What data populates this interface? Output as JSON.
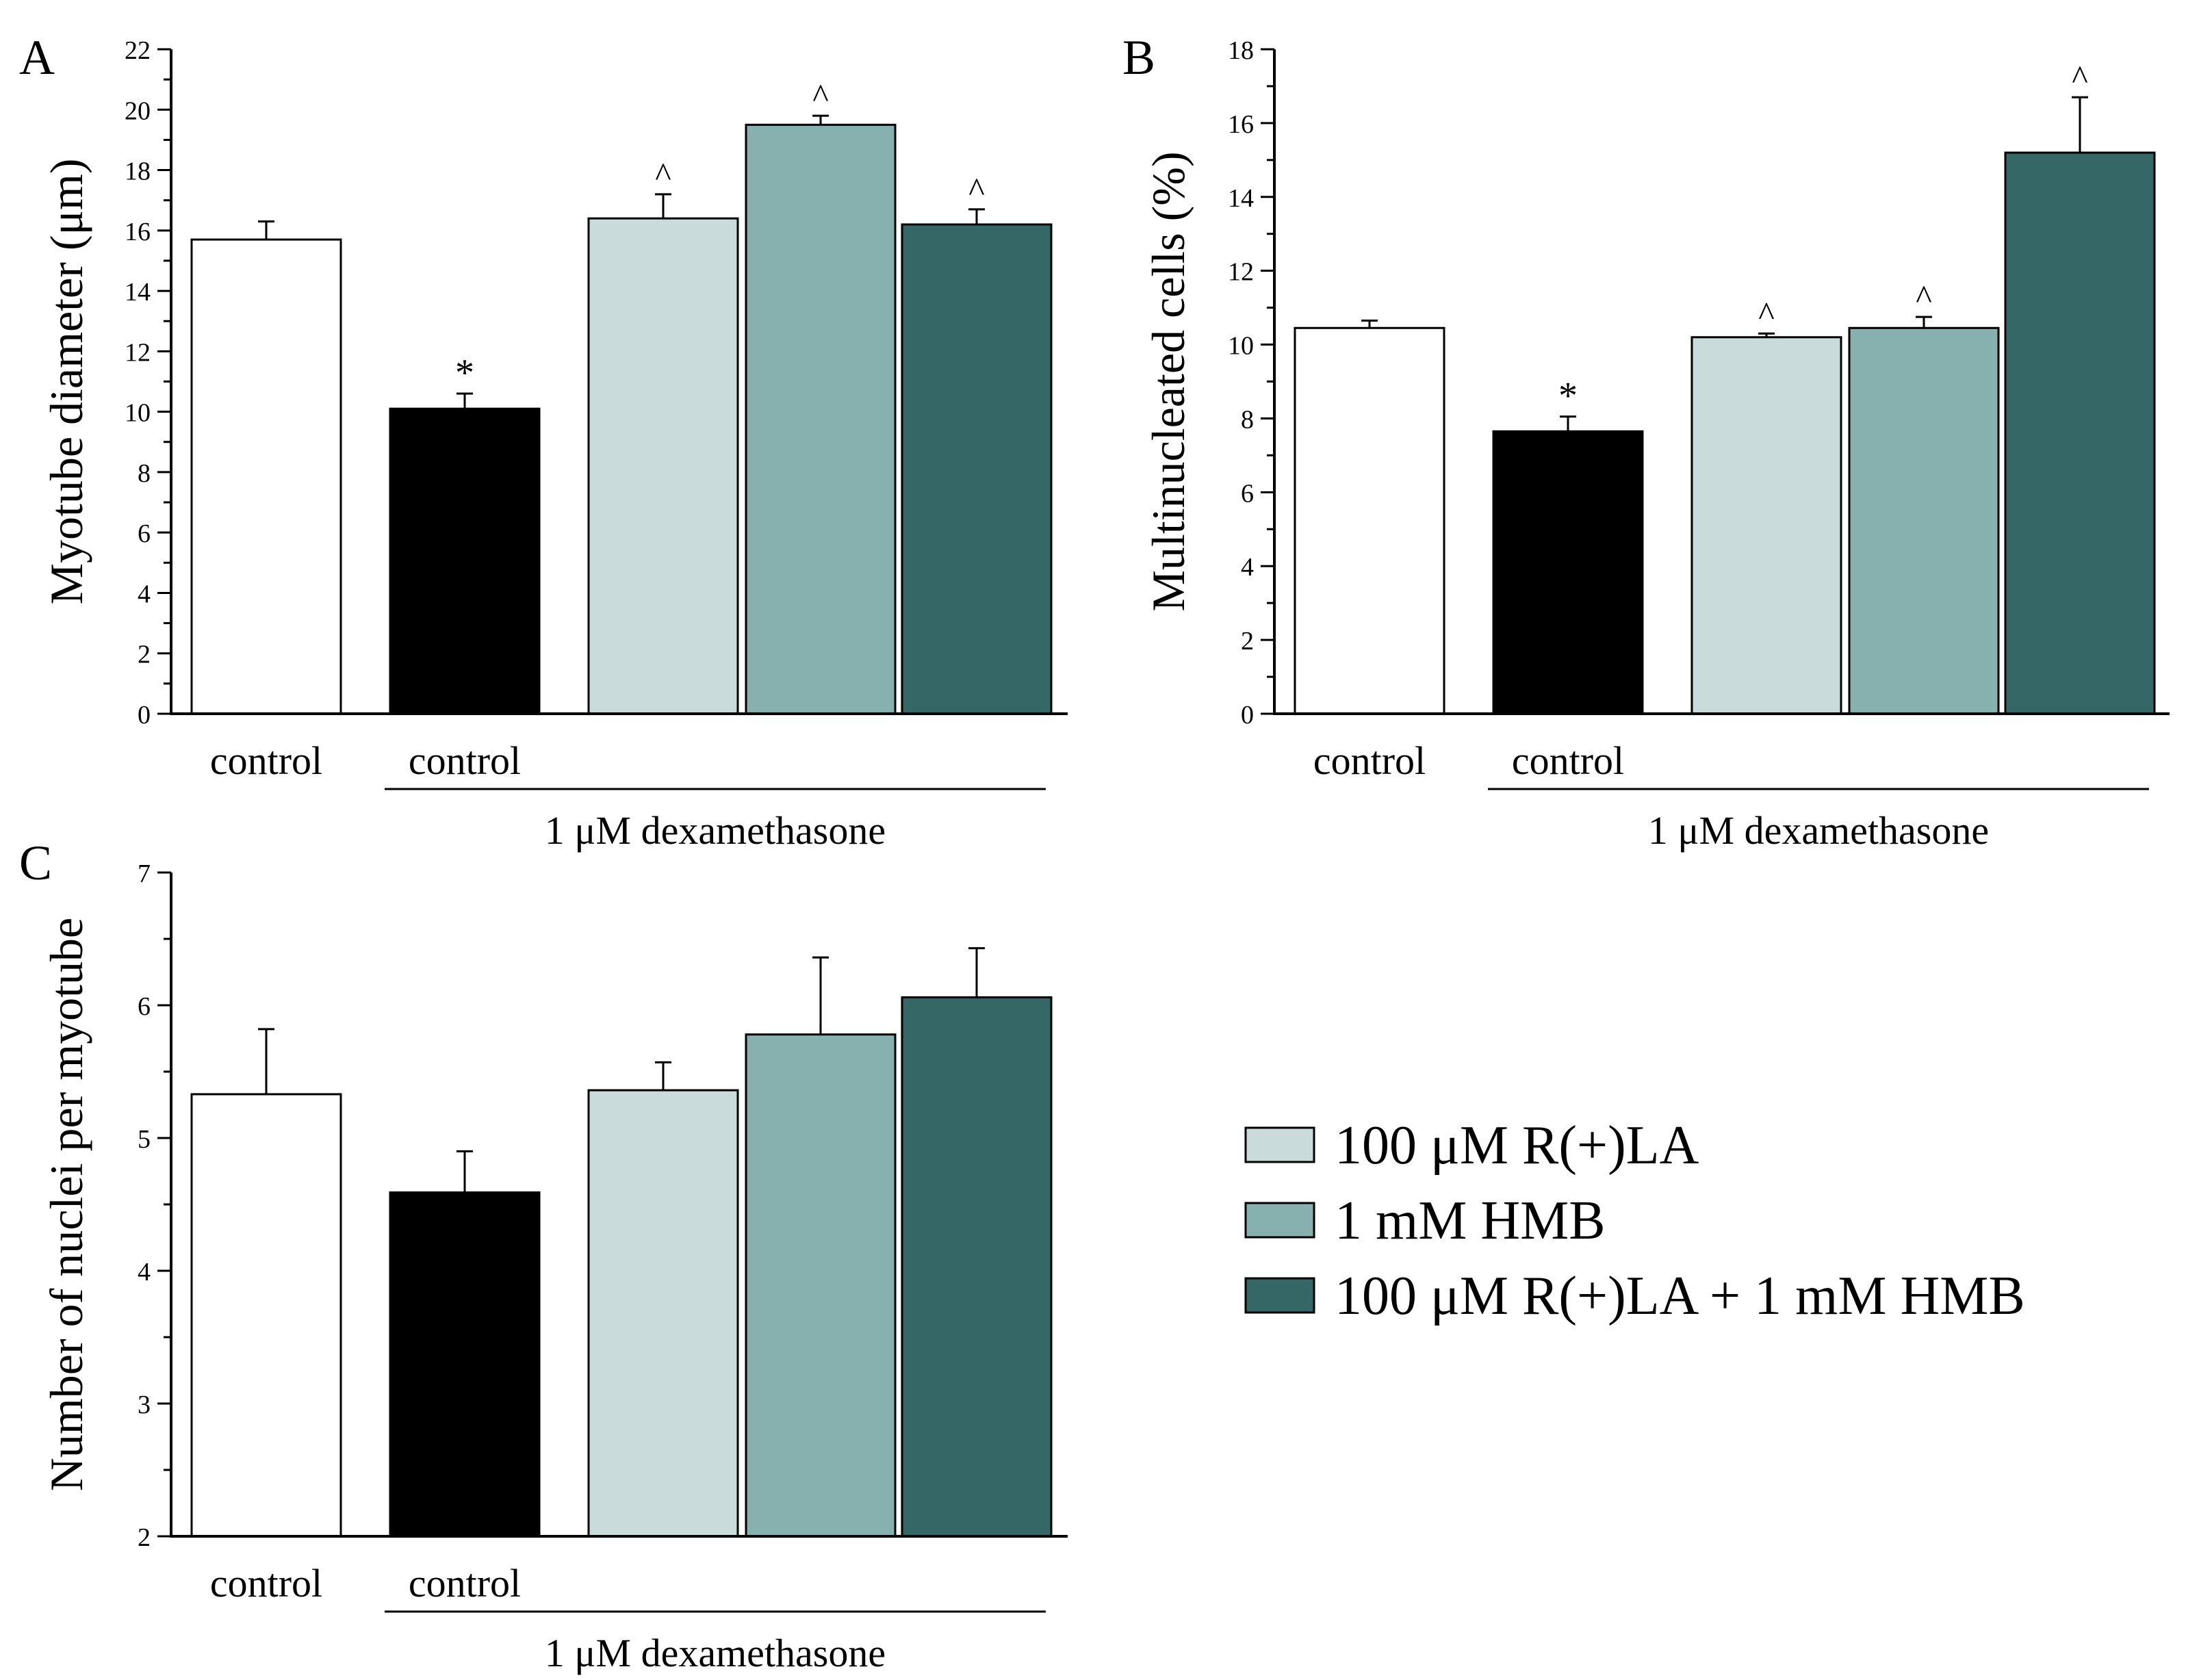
{
  "colors": {
    "control": "#ffffff",
    "dex_control": "#000000",
    "lipoic_acid": "#c9dbda",
    "hmb": "#86b1ae",
    "combination": "#356767",
    "axis": "#000000"
  },
  "chart_data": [
    {
      "panel_label": "A",
      "type": "bar",
      "ylabel": "Myotube diameter (μm)",
      "ylim": [
        0,
        22
      ],
      "yticks": [
        "0",
        "2",
        "4",
        "6",
        "8",
        "10",
        "12",
        "14",
        "16",
        "18",
        "20",
        "22"
      ],
      "categories": [
        "control",
        "control",
        "",
        "",
        ""
      ],
      "values": [
        15.7,
        10.1,
        16.4,
        19.5,
        16.2
      ],
      "errors": [
        0.6,
        0.5,
        0.8,
        0.3,
        0.5
      ],
      "markers": [
        "",
        "*",
        "^",
        "^",
        "^"
      ],
      "group_label": "1 μM  dexamethasone"
    },
    {
      "panel_label": "B",
      "type": "bar",
      "ylabel": "Multinucleated cells (%)",
      "ylim": [
        0,
        18
      ],
      "yticks": [
        "0",
        "2",
        "4",
        "6",
        "8",
        "10",
        "12",
        "14",
        "16",
        "18"
      ],
      "categories": [
        "control",
        "control",
        "",
        "",
        ""
      ],
      "values": [
        10.45,
        7.65,
        10.2,
        10.45,
        15.2
      ],
      "errors": [
        0.2,
        0.4,
        0.1,
        0.3,
        1.5
      ],
      "markers": [
        "",
        "*",
        "^",
        "^",
        "^"
      ],
      "group_label": "1 μM  dexamethasone"
    },
    {
      "panel_label": "C",
      "type": "bar",
      "ylabel": "Number of nuclei per myotube",
      "ylim": [
        2,
        7
      ],
      "yticks": [
        "2",
        "3",
        "4",
        "5",
        "6",
        "7"
      ],
      "categories": [
        "control",
        "control",
        "",
        "",
        ""
      ],
      "values": [
        5.33,
        4.59,
        5.36,
        5.78,
        6.06
      ],
      "errors": [
        0.49,
        0.31,
        0.21,
        0.58,
        0.37
      ],
      "markers": [
        "",
        "",
        "",
        "",
        ""
      ],
      "group_label": "1 μM  dexamethasone"
    }
  ],
  "legend": [
    {
      "label": "100 μM R(+)LA",
      "color": "#c9dbda"
    },
    {
      "label": "1 mM HMB",
      "color": "#86b1ae"
    },
    {
      "label": "100 μM R(+)LA + 1 mM HMB",
      "color": "#356767"
    }
  ]
}
